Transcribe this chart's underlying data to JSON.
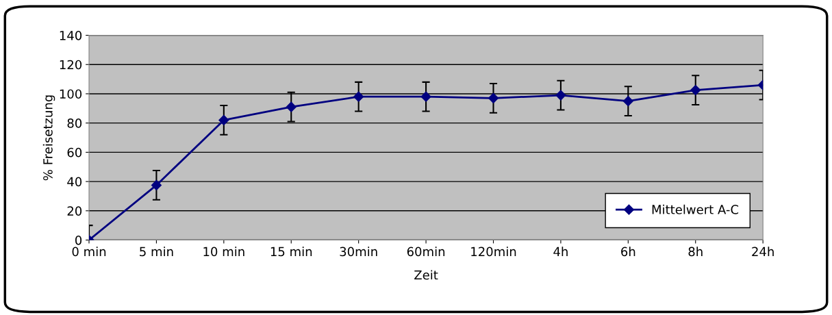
{
  "chart_data": {
    "type": "line",
    "xlabel": "Zeit",
    "ylabel": "% Freisetzung",
    "categories": [
      "0 min",
      "5 min",
      "10 min",
      "15 min",
      "30min",
      "60min",
      "120min",
      "4h",
      "6h",
      "8h",
      "24h"
    ],
    "series": [
      {
        "name": "Mittelwert A-C",
        "color": "#000080",
        "values": [
          0,
          37.5,
          82,
          91,
          98,
          98,
          97,
          99,
          95,
          102.5,
          106
        ],
        "errors": [
          [
            0,
            10
          ],
          10,
          10,
          10,
          10,
          10,
          10,
          10,
          10,
          10,
          10
        ]
      }
    ],
    "ylim": [
      0,
      140
    ],
    "yticks": [
      0,
      20,
      40,
      60,
      80,
      100,
      120,
      140
    ],
    "grid": "y",
    "legend": "bottom right",
    "marker": "diamond",
    "line_style": "solid"
  }
}
